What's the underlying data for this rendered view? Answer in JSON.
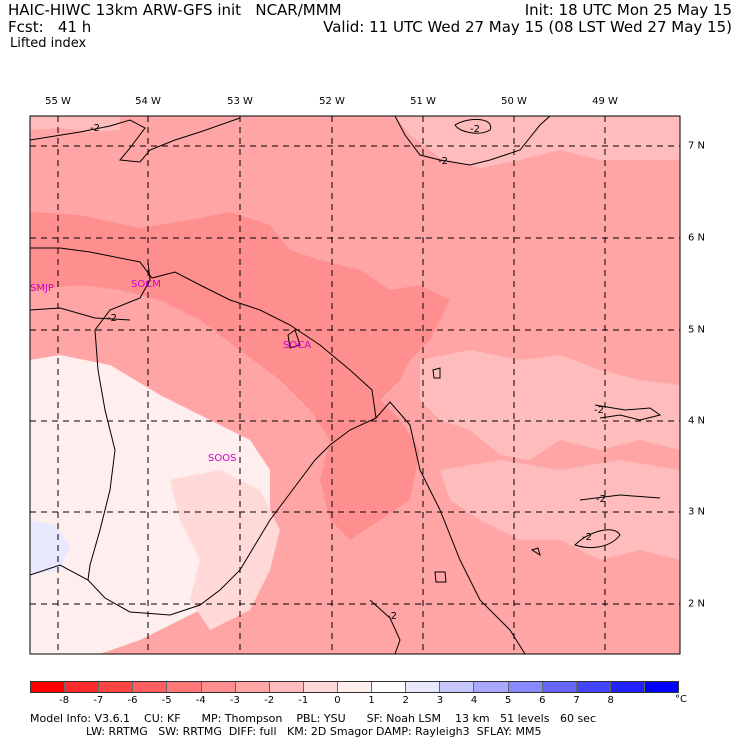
{
  "header": {
    "title_left": "HAIC-HIWC 13km ARW-GFS init   NCAR/MMM",
    "init_text": "Init: 18 UTC Mon 25 May 15",
    "fcst_text": "Fcst:   41 h",
    "valid_text": "Valid: 11 UTC Wed 27 May 15 (08 LST Wed 27 May 15)",
    "field_name": "Lifted index"
  },
  "map": {
    "longitude_labels": [
      "55 W",
      "54 W",
      "53 W",
      "52 W",
      "51 W",
      "50 W",
      "49 W"
    ],
    "latitude_labels": [
      "7 N",
      "6 N",
      "5 N",
      "4 N",
      "3 N",
      "2 N"
    ],
    "contour_labels": [
      "-2",
      "-2",
      "-2",
      "-2",
      "-2",
      "-2",
      "-2",
      "-2"
    ],
    "stations": [
      "SMJP",
      "SOCM",
      "SOCA",
      "SOOS"
    ]
  },
  "colorbar": {
    "colors": [
      "#ff0000",
      "#ff2a2a",
      "#ff4444",
      "#ff5f5f",
      "#ff7777",
      "#ff8f8f",
      "#ffa5a5",
      "#ffbcbc",
      "#ffd8d8",
      "#ffeeee",
      "#ffffff",
      "#e8e8ff",
      "#c8c8ff",
      "#a8a8ff",
      "#8888ff",
      "#6666ff",
      "#4444ff",
      "#2222ff",
      "#0000ff"
    ],
    "tick_labels": [
      "-8",
      "-7",
      "-6",
      "-5",
      "-4",
      "-3",
      "-2",
      "-1",
      "0",
      "1",
      "2",
      "3",
      "4",
      "5",
      "6",
      "7",
      "8"
    ],
    "unit": "°C"
  },
  "footer": {
    "line1": "Model Info: V3.6.1    CU: KF      MP: Thompson    PBL: YSU      SF: Noah LSM    13 km   51 levels   60 sec",
    "line2": "                LW: RRTMG   SW: RRTMG  DIFF: full   KM: 2D Smagor DAMP: Rayleigh3  SFLAY: MM5"
  }
}
